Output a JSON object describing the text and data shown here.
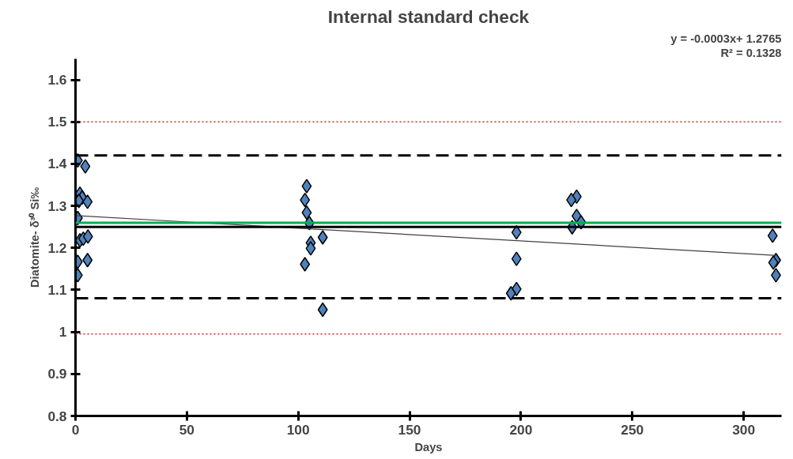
{
  "chart_data": {
    "type": "scatter",
    "title": "Internal standard check",
    "xlabel": "Days",
    "ylabel": "Diatomite- δ³⁰ Si‰",
    "annotations": [
      "y = -0.0003x+ 1.2765",
      "R² = 0.1328"
    ],
    "xlim": [
      0,
      317
    ],
    "xticks": [
      0,
      50,
      100,
      150,
      200,
      250,
      300
    ],
    "ylim": [
      0.8,
      1.65
    ],
    "yticks": [
      0.8,
      0.9,
      1,
      1.1,
      1.2,
      1.3,
      1.4,
      1.5,
      1.6
    ],
    "grid": false,
    "series": [
      {
        "marker": "diamond",
        "color": "#4f81bd",
        "x": [
          1,
          4.4,
          2,
          3,
          1.5,
          5.4,
          1,
          2,
          3.5,
          5.6,
          1,
          5.4,
          1,
          103.8,
          103,
          103.8,
          105,
          111,
          105.6,
          105.6,
          103,
          111,
          198,
          198,
          198,
          195.5,
          225,
          222.6,
          225,
          227,
          223,
          313,
          314.5,
          313.3,
          314.5
        ],
        "values": [
          1.408,
          1.394,
          1.329,
          1.32,
          1.312,
          1.31,
          1.271,
          1.218,
          1.222,
          1.227,
          1.167,
          1.171,
          1.135,
          1.347,
          1.314,
          1.284,
          1.259,
          1.225,
          1.212,
          1.199,
          1.161,
          1.053,
          1.237,
          1.174,
          1.102,
          1.092,
          1.322,
          1.314,
          1.276,
          1.261,
          1.249,
          1.229,
          1.171,
          1.165,
          1.135
        ]
      },
      {
        "type": "line",
        "color": "#404040",
        "line_style": "solid",
        "x": [
          0,
          315
        ],
        "values": [
          1.277,
          1.182
        ]
      }
    ],
    "ref_lines": [
      {
        "axis": "y",
        "value": 1.5,
        "color": "#e02020",
        "line_style": "dotted"
      },
      {
        "axis": "y",
        "value": 1.42,
        "color": "#000000",
        "line_style": "dashed"
      },
      {
        "axis": "y",
        "value": 1.26,
        "color": "#00b050",
        "line_style": "solid"
      },
      {
        "axis": "y",
        "value": 1.25,
        "color": "#000000",
        "line_style": "solid"
      },
      {
        "axis": "y",
        "value": 1.08,
        "color": "#000000",
        "line_style": "dashed"
      },
      {
        "axis": "y",
        "value": 0.995,
        "color": "#e02020",
        "line_style": "dotted"
      }
    ]
  }
}
